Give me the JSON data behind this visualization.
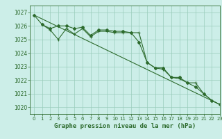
{
  "title": "Graphe pression niveau de la mer (hPa)",
  "bg_color": "#cceee8",
  "grid_color": "#99ccbb",
  "line_color": "#2d6b2d",
  "xlim": [
    -0.5,
    23
  ],
  "ylim": [
    1019.5,
    1027.5
  ],
  "yticks": [
    1020,
    1021,
    1022,
    1023,
    1024,
    1025,
    1026,
    1027
  ],
  "xticks": [
    0,
    1,
    2,
    3,
    4,
    5,
    6,
    7,
    8,
    9,
    10,
    11,
    12,
    13,
    14,
    15,
    16,
    17,
    18,
    19,
    20,
    21,
    22,
    23
  ],
  "series1_x": [
    0,
    1,
    2,
    3,
    4,
    5,
    6,
    7,
    8,
    9,
    10,
    11,
    12,
    13,
    14,
    15,
    16,
    17,
    18,
    19,
    20,
    21,
    22,
    23
  ],
  "series1_y": [
    1026.8,
    1026.1,
    1025.8,
    1026.0,
    1026.0,
    1025.8,
    1025.9,
    1025.3,
    1025.7,
    1025.7,
    1025.6,
    1025.6,
    1025.5,
    1024.8,
    1023.3,
    1022.9,
    1022.9,
    1022.2,
    1022.2,
    1021.8,
    1021.5,
    1021.0,
    1020.5,
    1020.2
  ],
  "series2_x": [
    0,
    23
  ],
  "series2_y": [
    1026.8,
    1020.2
  ],
  "series3_x": [
    1,
    2,
    3,
    4,
    5,
    6,
    7,
    8,
    9,
    10,
    11,
    12,
    13,
    14,
    15,
    16,
    17,
    18,
    19,
    20,
    21,
    22,
    23
  ],
  "series3_y": [
    1026.1,
    1025.7,
    1025.0,
    1025.8,
    1025.4,
    1025.8,
    1025.2,
    1025.6,
    1025.6,
    1025.5,
    1025.5,
    1025.5,
    1025.5,
    1023.3,
    1022.9,
    1022.8,
    1022.2,
    1022.1,
    1021.8,
    1021.8,
    1021.0,
    1020.5,
    1020.2
  ],
  "title_fontsize": 6.5,
  "tick_fontsize": 5.5,
  "xtick_fontsize": 5.0
}
